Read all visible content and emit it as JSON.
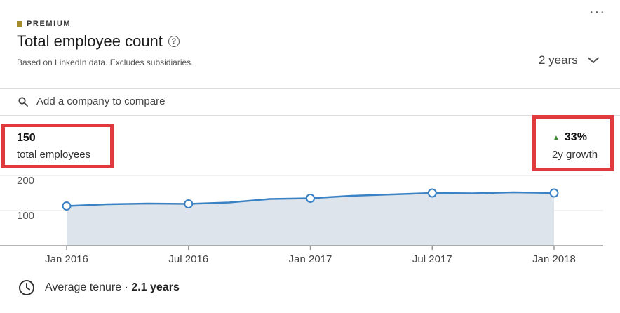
{
  "header": {
    "badge": "PREMIUM",
    "title": "Total employee count",
    "subtitle": "Based on LinkedIn data. Excludes subsidiaries.",
    "more_icon": "more-horizontal-icon",
    "help_icon": "question-circle-icon"
  },
  "range_selector": {
    "value": "2 years",
    "icon": "chevron-down-icon"
  },
  "search": {
    "placeholder": "Add a company to compare",
    "value": "",
    "icon": "search-icon"
  },
  "stats": {
    "count_value": "150",
    "count_label": "total employees",
    "growth_value": "33%",
    "growth_label": "2y growth",
    "growth_icon": "up-triangle-icon"
  },
  "chart_data": {
    "type": "area",
    "x": [
      "Jan 2016",
      "Mar 2016",
      "May 2016",
      "Jul 2016",
      "Sep 2016",
      "Nov 2016",
      "Jan 2017",
      "Mar 2017",
      "May 2017",
      "Jul 2017",
      "Sep 2017",
      "Nov 2017",
      "Jan 2018"
    ],
    "series": [
      {
        "values": [
          113,
          118,
          120,
          119,
          123,
          133,
          135,
          142,
          146,
          150,
          149,
          152,
          150
        ]
      }
    ],
    "markers_at": [
      "Jan 2016",
      "Jul 2016",
      "Jan 2017",
      "Jul 2017",
      "Jan 2018"
    ],
    "tick_labels": [
      "Jan 2016",
      "Jul 2016",
      "Jan 2017",
      "Jul 2017",
      "Jan 2018"
    ],
    "y_ticks": [
      "200",
      "100"
    ],
    "ylim": [
      0,
      200
    ],
    "colors": {
      "line": "#3b82c4",
      "fill": "#dde4ec",
      "grid": "#e3e3e3",
      "axis": "#9a9a9a"
    }
  },
  "footer": {
    "label": "Average tenure · ",
    "value": "2.1 years",
    "icon": "clock-icon"
  },
  "colors": {
    "highlight": "#e0393e",
    "premium_gold": "#a68b2c",
    "growth_green": "#3b8a2e"
  }
}
